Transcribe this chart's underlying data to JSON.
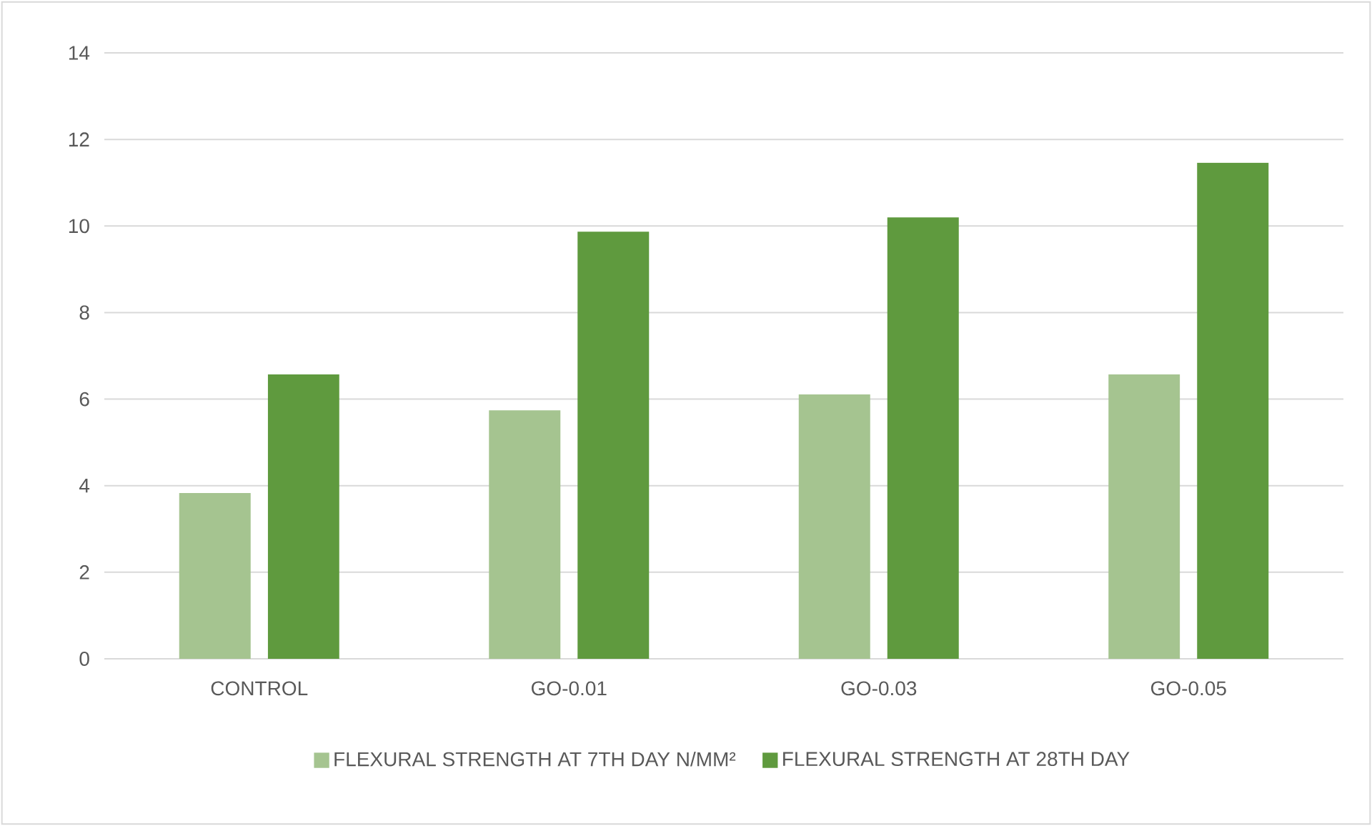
{
  "chart_data": {
    "type": "bar",
    "categories": [
      "CONTROL",
      "GO-0.01",
      "GO-0.03",
      "GO-0.05"
    ],
    "series": [
      {
        "name": "FLEXURAL STRENGTH AT 7TH DAY N/MM²",
        "color": "#a5c490",
        "values": [
          3.83,
          5.74,
          6.11,
          6.57
        ]
      },
      {
        "name": "FLEXURAL STRENGTH AT 28TH DAY",
        "color": "#5f9a3e",
        "values": [
          6.57,
          9.87,
          10.2,
          11.46
        ]
      }
    ],
    "ylim": [
      0,
      14
    ],
    "yticks": [
      0,
      2,
      4,
      6,
      8,
      10,
      12,
      14
    ],
    "grid": "y",
    "legend": "bottom"
  }
}
